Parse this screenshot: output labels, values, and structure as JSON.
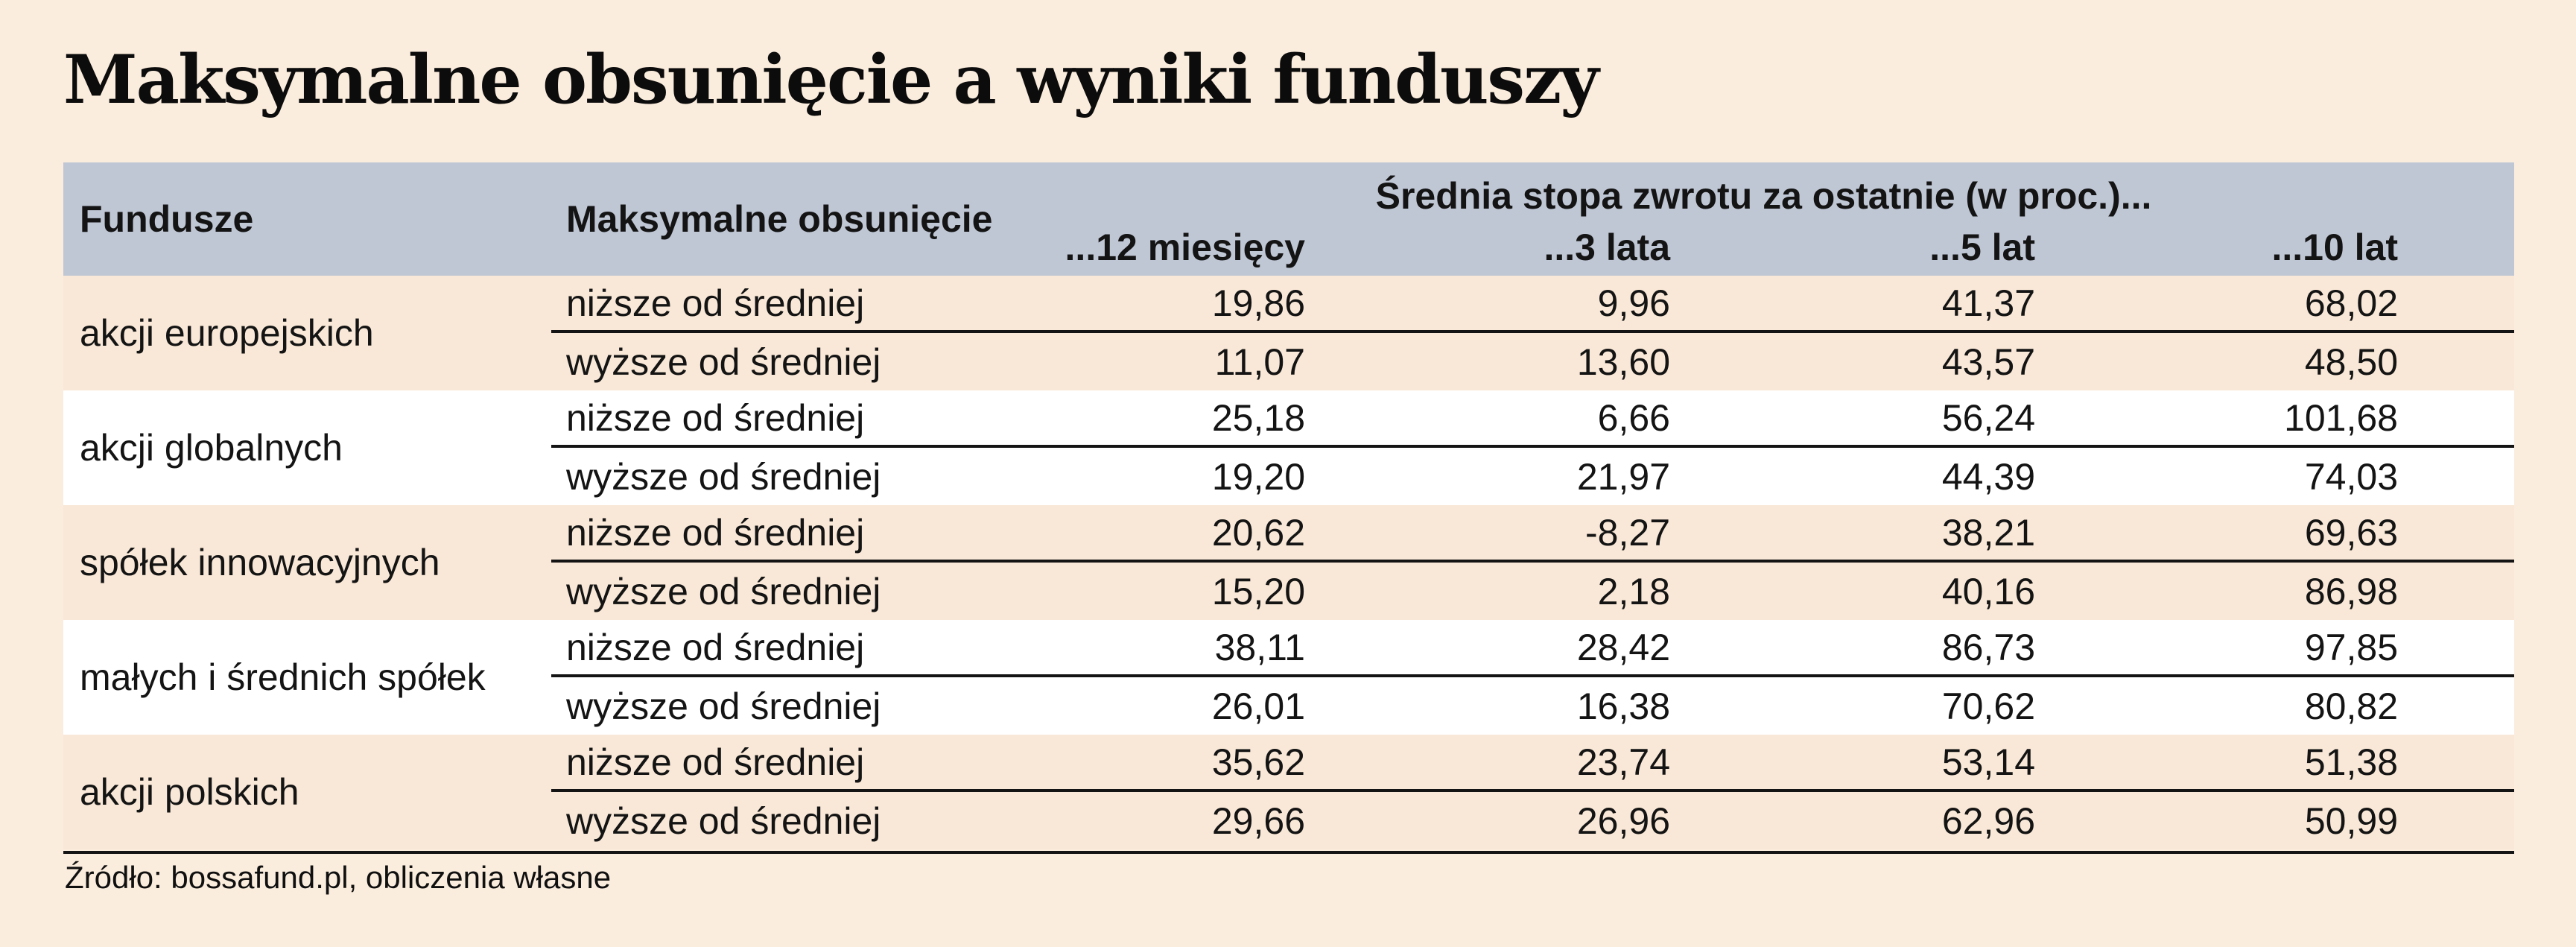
{
  "title": "Maksymalne obsunięcie a wyniki funduszy",
  "source": "Źródło: bossafund.pl, obliczenia własne",
  "colors": {
    "page_bg": "#fbeddd",
    "header_bg": "#bfc6d4",
    "stripe_peach": "#f9e8d7",
    "stripe_white": "#ffffff",
    "text": "#141414",
    "rule": "#141414"
  },
  "header": {
    "funds": "Fundusze",
    "drawdown": "Maksymalne obsunięcie",
    "returns_group": "Średnia stopa zwrotu za ostatnie (w proc.)...",
    "periods": [
      "...12 miesięcy",
      "...3 lata",
      "...5 lat",
      "...10 lat"
    ]
  },
  "chart_data": {
    "type": "table",
    "title": "Maksymalne obsunięcie a wyniki funduszy",
    "column_group": "Średnia stopa zwrotu za ostatnie (w proc.)...",
    "columns": [
      "Fundusze",
      "Maksymalne obsunięcie",
      "...12 miesięcy",
      "...3 lata",
      "...5 lat",
      "...10 lat"
    ],
    "groups": [
      {
        "fund": "akcji europejskich",
        "rows": [
          {
            "drawdown": "niższe od średniej",
            "values": [
              "19,86",
              "9,96",
              "41,37",
              "68,02"
            ]
          },
          {
            "drawdown": "wyższe od średniej",
            "values": [
              "11,07",
              "13,60",
              "43,57",
              "48,50"
            ]
          }
        ]
      },
      {
        "fund": "akcji globalnych",
        "rows": [
          {
            "drawdown": "niższe od średniej",
            "values": [
              "25,18",
              "6,66",
              "56,24",
              "101,68"
            ]
          },
          {
            "drawdown": "wyższe od średniej",
            "values": [
              "19,20",
              "21,97",
              "44,39",
              "74,03"
            ]
          }
        ]
      },
      {
        "fund": "spółek innowacyjnych",
        "rows": [
          {
            "drawdown": "niższe od średniej",
            "values": [
              "20,62",
              "-8,27",
              "38,21",
              "69,63"
            ]
          },
          {
            "drawdown": "wyższe od średniej",
            "values": [
              "15,20",
              "2,18",
              "40,16",
              "86,98"
            ]
          }
        ]
      },
      {
        "fund": "małych i średnich spółek",
        "rows": [
          {
            "drawdown": "niższe od średniej",
            "values": [
              "38,11",
              "28,42",
              "86,73",
              "97,85"
            ]
          },
          {
            "drawdown": "wyższe od średniej",
            "values": [
              "26,01",
              "16,38",
              "70,62",
              "80,82"
            ]
          }
        ]
      },
      {
        "fund": "akcji polskich",
        "rows": [
          {
            "drawdown": "niższe od średniej",
            "values": [
              "35,62",
              "23,74",
              "53,14",
              "51,38"
            ]
          },
          {
            "drawdown": "wyższe od średniej",
            "values": [
              "29,66",
              "26,96",
              "62,96",
              "50,99"
            ]
          }
        ]
      }
    ]
  }
}
